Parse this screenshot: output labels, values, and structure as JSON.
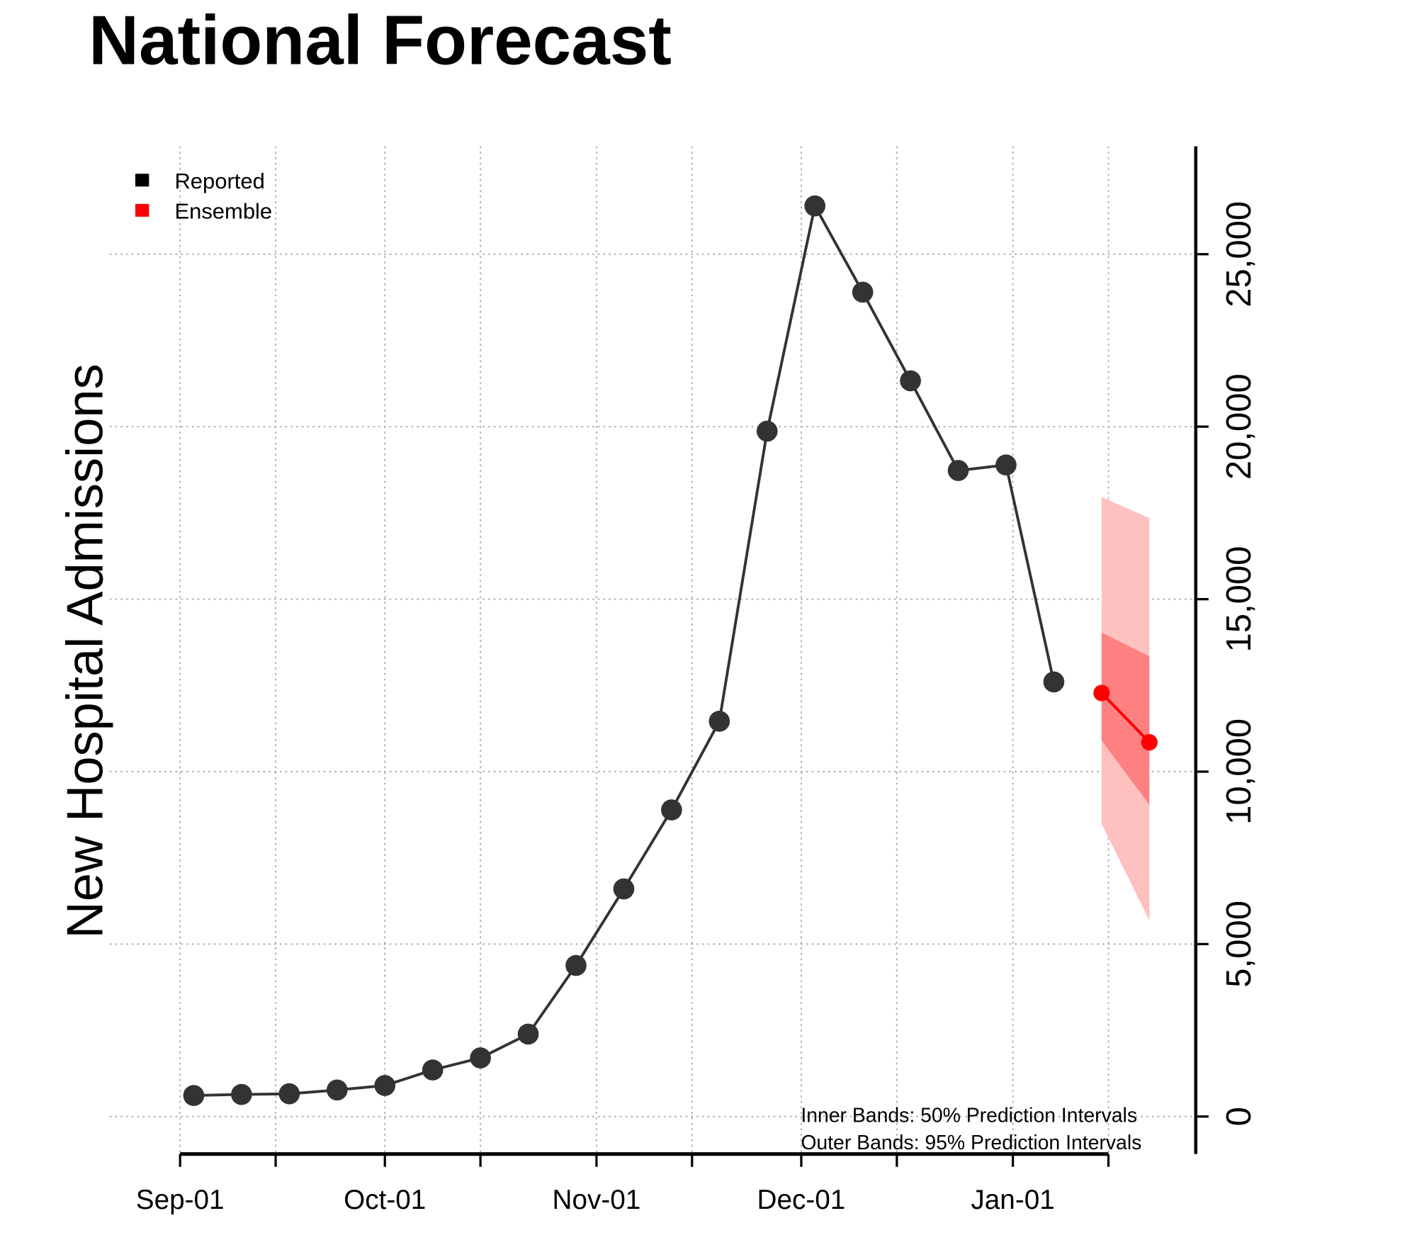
{
  "chart_data": {
    "type": "line",
    "title": "National Forecast",
    "xlabel": "",
    "ylabel": "New Hospital Admissions",
    "x_axis": {
      "type": "date",
      "range": [
        "2022-08-22",
        "2023-01-27"
      ],
      "tick_labels": [
        {
          "date": "2022-09-01",
          "label": "Sep-01"
        },
        {
          "date": "2022-10-01",
          "label": "Oct-01"
        },
        {
          "date": "2022-11-01",
          "label": "Nov-01"
        },
        {
          "date": "2022-12-01",
          "label": "Dec-01"
        },
        {
          "date": "2023-01-01",
          "label": "Jan-01"
        }
      ],
      "minor_ticks": [
        "2022-09-15",
        "2022-10-15",
        "2022-11-15",
        "2022-12-15",
        "2023-01-15"
      ]
    },
    "y_axis": {
      "position": "right",
      "range": [
        -1000,
        28100
      ],
      "ticks": [
        0,
        5000,
        10000,
        15000,
        20000,
        25000
      ],
      "tick_labels": [
        "0",
        "5,000",
        "10,000",
        "15,000",
        "20,000",
        "25,000"
      ]
    },
    "grid": true,
    "legend": {
      "placement": "top-left",
      "entries": [
        {
          "label": "Reported",
          "color": "#000000"
        },
        {
          "label": "Ensemble",
          "color": "#ff0000"
        }
      ]
    },
    "series": [
      {
        "name": "Reported",
        "color": "#333333",
        "points": [
          {
            "x": "2022-09-03",
            "y": 610
          },
          {
            "x": "2022-09-10",
            "y": 640
          },
          {
            "x": "2022-09-17",
            "y": 660
          },
          {
            "x": "2022-09-24",
            "y": 770
          },
          {
            "x": "2022-10-01",
            "y": 900
          },
          {
            "x": "2022-10-08",
            "y": 1350
          },
          {
            "x": "2022-10-15",
            "y": 1700
          },
          {
            "x": "2022-10-22",
            "y": 2390
          },
          {
            "x": "2022-10-29",
            "y": 4380
          },
          {
            "x": "2022-11-05",
            "y": 6600
          },
          {
            "x": "2022-11-12",
            "y": 8890
          },
          {
            "x": "2022-11-19",
            "y": 11460
          },
          {
            "x": "2022-11-26",
            "y": 19870
          },
          {
            "x": "2022-12-03",
            "y": 26400
          },
          {
            "x": "2022-12-10",
            "y": 23900
          },
          {
            "x": "2022-12-17",
            "y": 21330
          },
          {
            "x": "2022-12-24",
            "y": 18730
          },
          {
            "x": "2022-12-31",
            "y": 18890
          },
          {
            "x": "2023-01-07",
            "y": 12600
          }
        ]
      },
      {
        "name": "Ensemble",
        "color": "#ff0000",
        "points": [
          {
            "x": "2023-01-14",
            "y": 12280,
            "lo50": 10900,
            "hi50": 14030,
            "lo95": 8490,
            "hi95": 17960
          },
          {
            "x": "2023-01-21",
            "y": 10850,
            "lo50": 9040,
            "hi50": 13340,
            "lo95": 5680,
            "hi95": 17350
          }
        ],
        "band_colors": {
          "inner": "#ff8080",
          "outer": "#ffc0c0"
        }
      }
    ],
    "annotations": [
      "Inner Bands: 50% Prediction Intervals",
      "Outer Bands: 95% Prediction Intervals"
    ]
  }
}
